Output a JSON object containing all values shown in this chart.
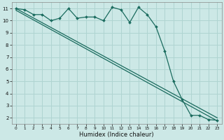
{
  "xlabel": "Humidex (Indice chaleur)",
  "ylabel": "",
  "bg_color": "#cce8e6",
  "grid_color": "#afd4d1",
  "line_color": "#1a6b5e",
  "xlim": [
    -0.5,
    23.5
  ],
  "ylim": [
    1.5,
    11.5
  ],
  "xticks": [
    0,
    1,
    2,
    3,
    4,
    5,
    6,
    7,
    8,
    9,
    10,
    11,
    12,
    13,
    14,
    15,
    16,
    17,
    18,
    19,
    20,
    21,
    22,
    23
  ],
  "yticks": [
    2,
    3,
    4,
    5,
    6,
    7,
    8,
    9,
    10,
    11
  ],
  "line1_x": [
    0,
    1,
    2,
    3,
    4,
    5,
    6,
    7,
    8,
    9,
    10,
    11,
    12,
    13,
    14,
    15,
    16,
    17,
    18,
    19,
    20,
    21,
    22,
    23
  ],
  "line1_y": [
    11.0,
    10.9,
    10.5,
    10.5,
    10.0,
    10.2,
    11.0,
    10.2,
    10.3,
    10.3,
    10.0,
    11.1,
    10.9,
    9.85,
    11.1,
    10.5,
    9.5,
    7.5,
    5.0,
    3.5,
    2.2,
    2.2,
    1.85,
    1.8
  ],
  "line2_x": [
    0,
    23
  ],
  "line2_y": [
    11.0,
    2.0
  ],
  "line3_x": [
    0,
    23
  ],
  "line3_y": [
    10.85,
    1.75
  ]
}
